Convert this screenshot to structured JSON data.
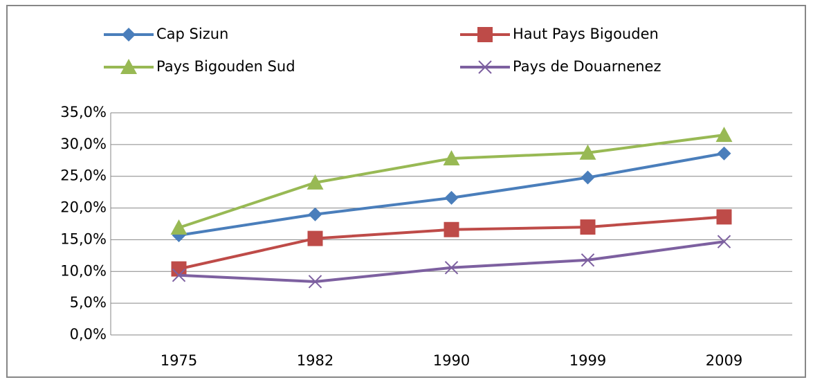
{
  "chart_data": {
    "type": "line",
    "categories": [
      "1975",
      "1982",
      "1990",
      "1999",
      "2009"
    ],
    "series": [
      {
        "name": "Cap Sizun",
        "color": "#4a7ebb",
        "marker": "diamond",
        "values": [
          15.7,
          19.0,
          21.6,
          24.8,
          28.6
        ]
      },
      {
        "name": "Haut Pays Bigouden",
        "color": "#be4b48",
        "marker": "square",
        "values": [
          10.4,
          15.2,
          16.6,
          17.0,
          18.6
        ]
      },
      {
        "name": "Pays Bigouden Sud",
        "color": "#98b954",
        "marker": "triangle",
        "values": [
          16.9,
          24.0,
          27.8,
          28.7,
          31.5
        ]
      },
      {
        "name": "Pays de Douarnenez",
        "color": "#7d60a0",
        "marker": "x",
        "values": [
          9.4,
          8.4,
          10.6,
          11.8,
          14.7
        ]
      }
    ],
    "ylim": [
      0,
      35
    ],
    "yticks": [
      {
        "value": 0,
        "label": "0,0%"
      },
      {
        "value": 5,
        "label": "5,0%"
      },
      {
        "value": 10,
        "label": "10,0%"
      },
      {
        "value": 15,
        "label": "15,0%"
      },
      {
        "value": 20,
        "label": "20,0%"
      },
      {
        "value": 25,
        "label": "25,0%"
      },
      {
        "value": 30,
        "label": "30,0%"
      },
      {
        "value": 35,
        "label": "35,0%"
      }
    ],
    "grid": true,
    "legend": "top"
  }
}
